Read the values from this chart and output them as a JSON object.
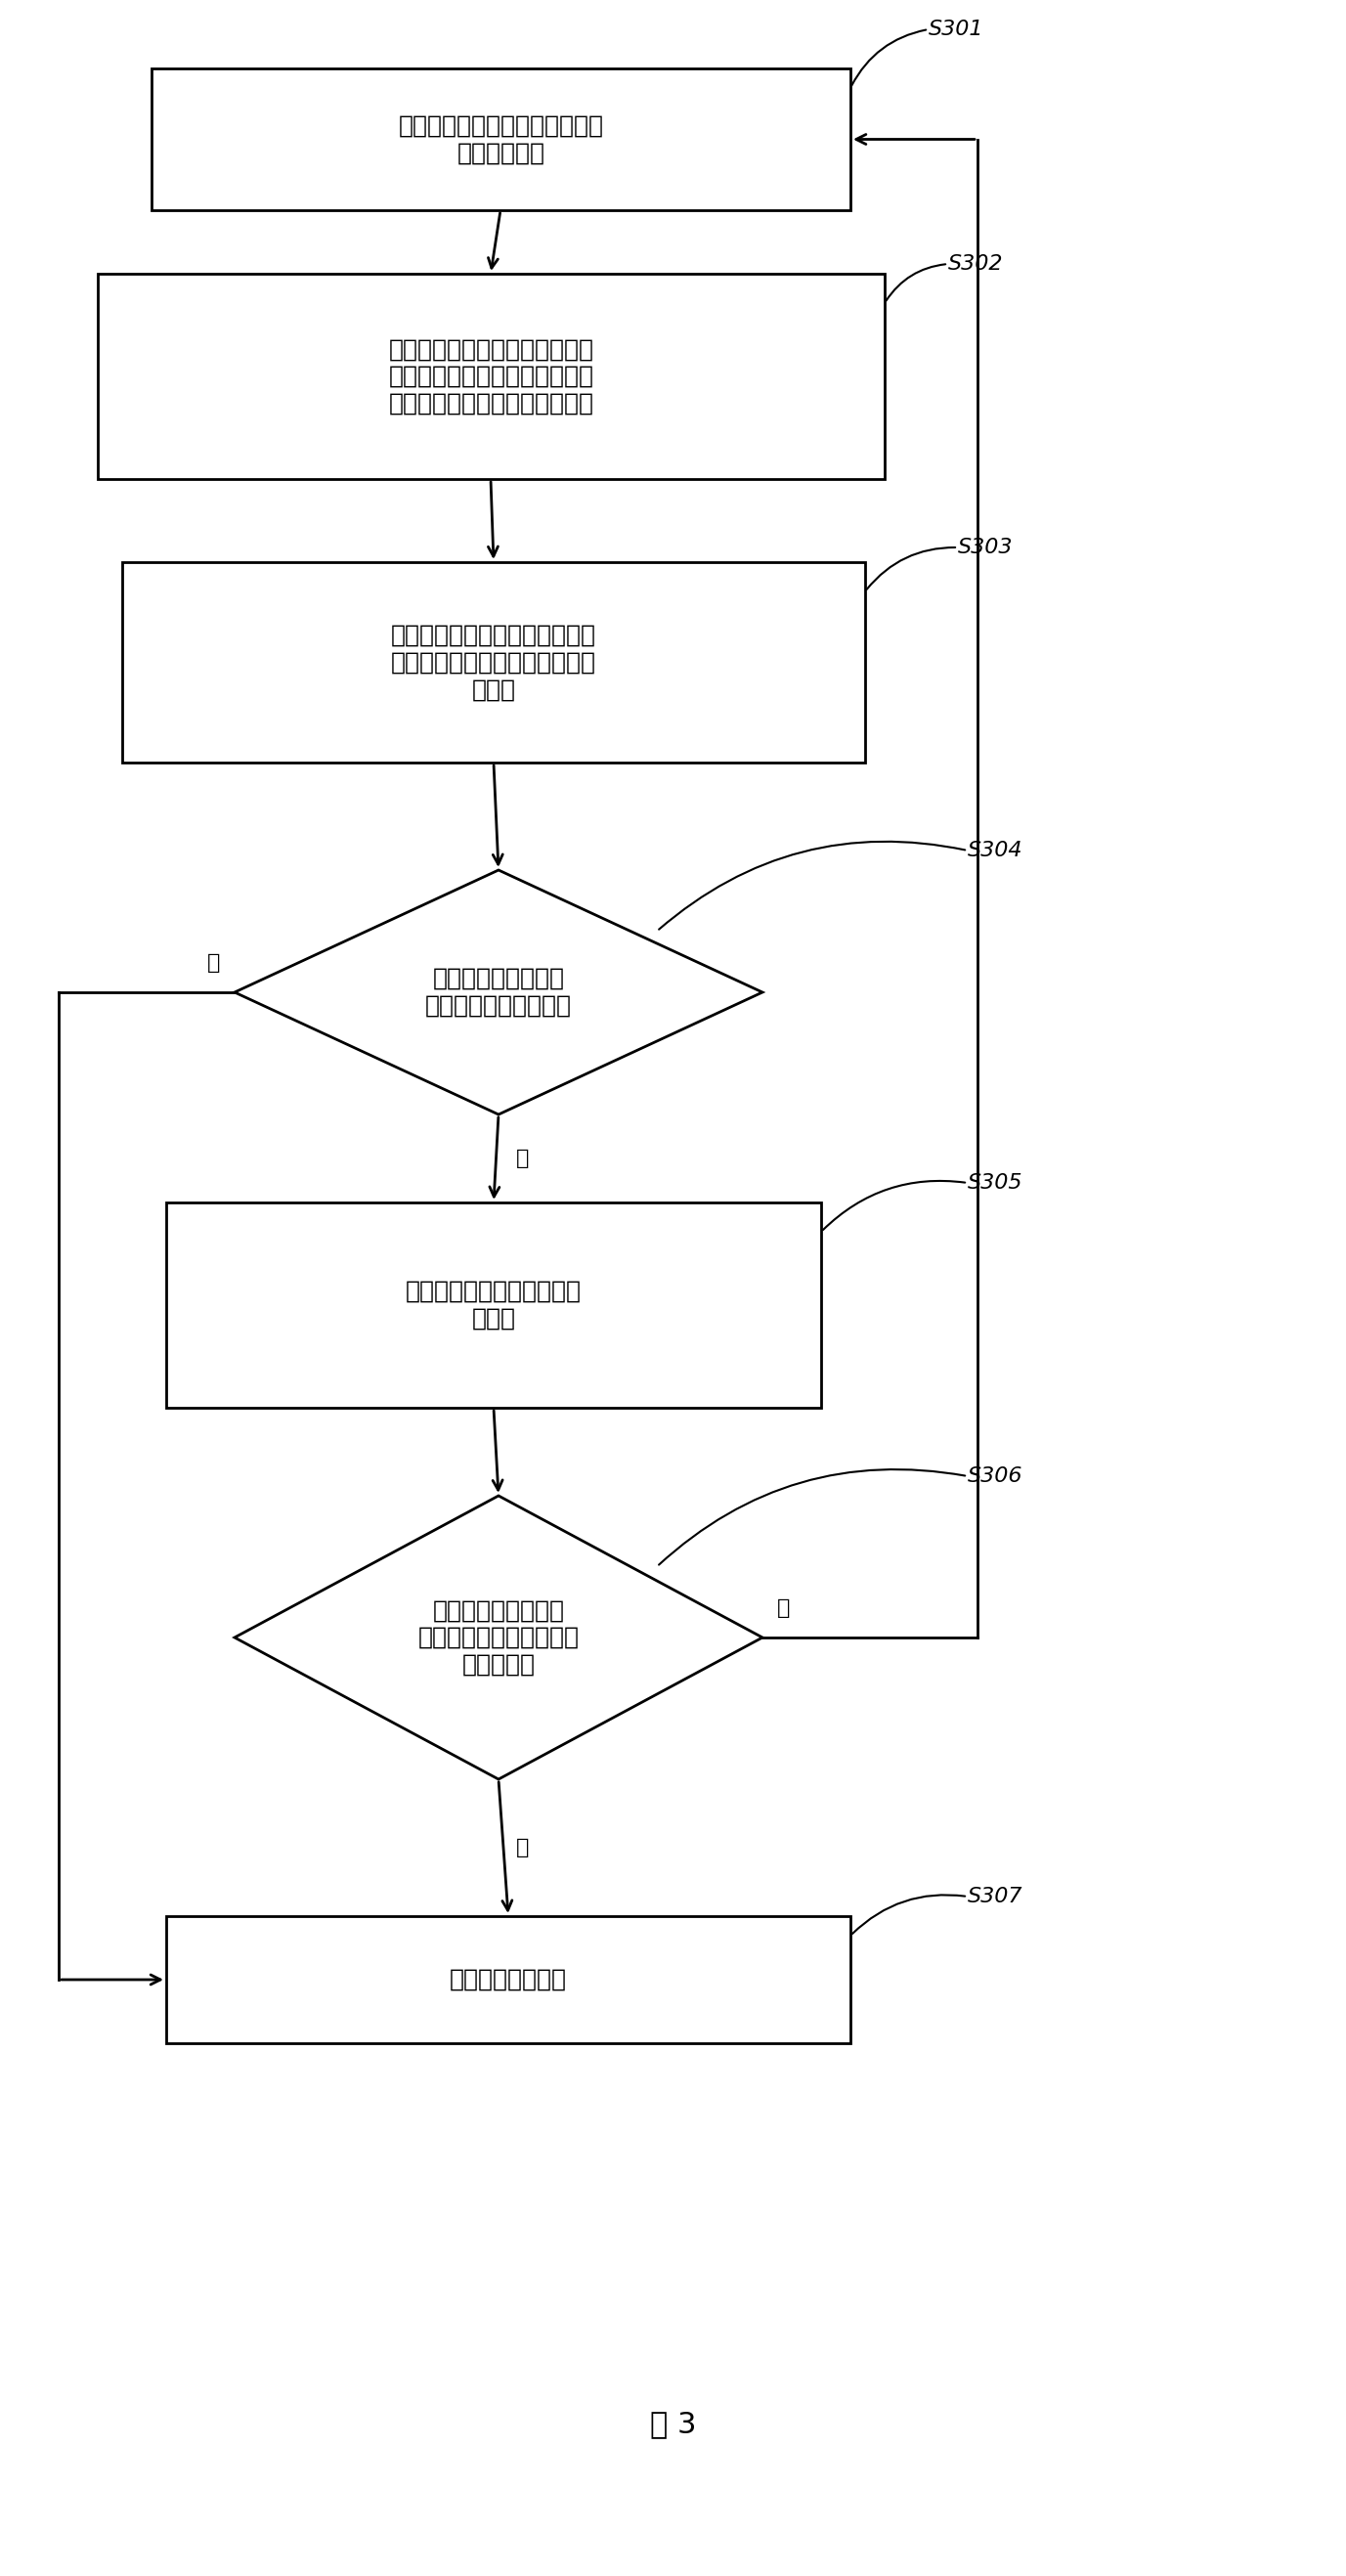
{
  "title": "图 3",
  "background_color": "#ffffff",
  "s301_text": "确定起重机当前工作状态对应的\n额定工作载荷",
  "s302_text": "在起重机吸有重物时，检测获得\n起重机各支腿受力，将各支腿受\n力和减去起重机自重，获得吸重",
  "s303_text": "以上述吸重与起重机额定工作载\n荷相比，获得起重机的工作力矩\n百分比",
  "s304_text": "工作力矩百分比小于\n等于预定的力矩限度？",
  "s305_text": "计算起重机任意相邻支腿的\n受力和",
  "s306_text": "起重机任意相邻支腿\n的受力和大于等于预定的\n倾翻阈值？",
  "s307_text": "进行力矩限制处理",
  "yes": "是",
  "no": "否",
  "font_size_box": 18,
  "font_size_label": 16,
  "font_size_title": 22
}
